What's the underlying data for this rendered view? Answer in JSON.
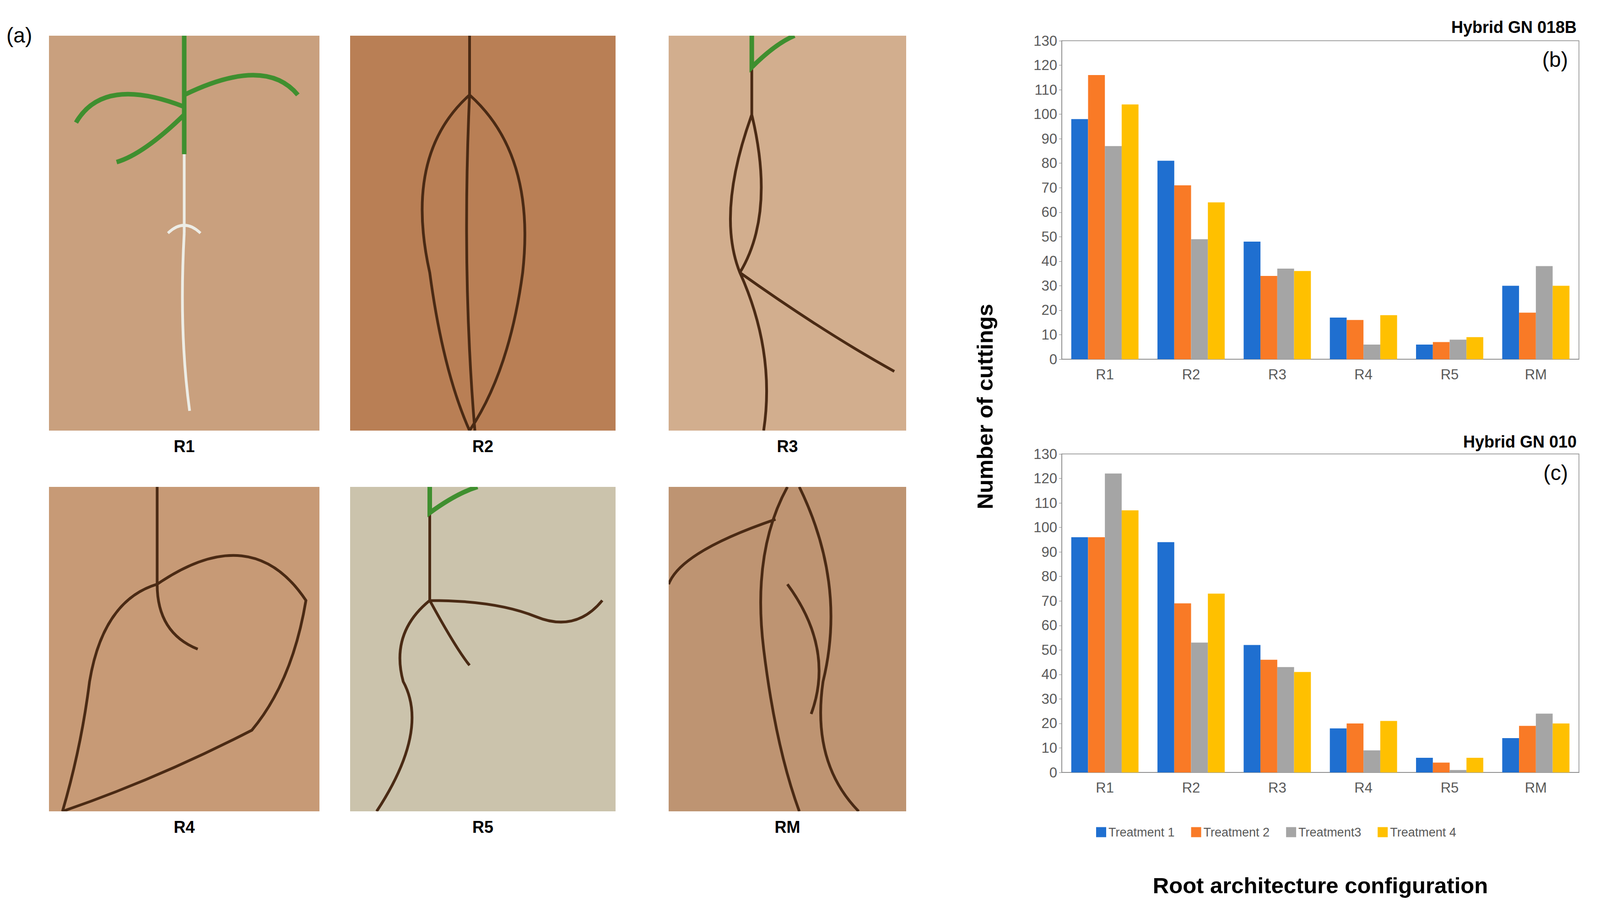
{
  "panel_a": {
    "label": "(a)",
    "photos": [
      "R1",
      "R2",
      "R3",
      "R4",
      "R5",
      "RM"
    ]
  },
  "y_axis_title": "Number of cuttings",
  "x_axis_title": "Root architecture configuration",
  "chart_data": [
    {
      "type": "bar",
      "title": "Hybrid GN 018B",
      "panel": "(b)",
      "categories": [
        "R1",
        "R2",
        "R3",
        "R4",
        "R5",
        "RM"
      ],
      "series": [
        {
          "name": "Treatment 1",
          "color": "#1F6FD0",
          "values": [
            98,
            81,
            48,
            17,
            6,
            30
          ]
        },
        {
          "name": "Treatment 2",
          "color": "#F97A26",
          "values": [
            116,
            71,
            34,
            16,
            7,
            19
          ]
        },
        {
          "name": "Treatment3",
          "color": "#A5A5A5",
          "values": [
            87,
            49,
            37,
            6,
            8,
            38
          ]
        },
        {
          "name": "Treatment 4",
          "color": "#FFC000",
          "values": [
            104,
            64,
            36,
            18,
            9,
            30
          ]
        }
      ],
      "ylim": [
        0,
        130
      ],
      "yticks": [
        0,
        10,
        20,
        30,
        40,
        50,
        60,
        70,
        80,
        90,
        100,
        110,
        120,
        130
      ],
      "grid": false
    },
    {
      "type": "bar",
      "title": "Hybrid GN 010",
      "panel": "(c)",
      "categories": [
        "R1",
        "R2",
        "R3",
        "R4",
        "R5",
        "RM"
      ],
      "series": [
        {
          "name": "Treatment 1",
          "color": "#1F6FD0",
          "values": [
            96,
            94,
            52,
            18,
            6,
            14
          ]
        },
        {
          "name": "Treatment 2",
          "color": "#F97A26",
          "values": [
            96,
            69,
            46,
            20,
            4,
            19
          ]
        },
        {
          "name": "Treatment3",
          "color": "#A5A5A5",
          "values": [
            122,
            53,
            43,
            9,
            1,
            24
          ]
        },
        {
          "name": "Treatment 4",
          "color": "#FFC000",
          "values": [
            107,
            73,
            41,
            21,
            6,
            20
          ]
        }
      ],
      "ylim": [
        0,
        130
      ],
      "yticks": [
        0,
        10,
        20,
        30,
        40,
        50,
        60,
        70,
        80,
        90,
        100,
        110,
        120,
        130
      ],
      "grid": false,
      "legend": "bottom"
    }
  ]
}
